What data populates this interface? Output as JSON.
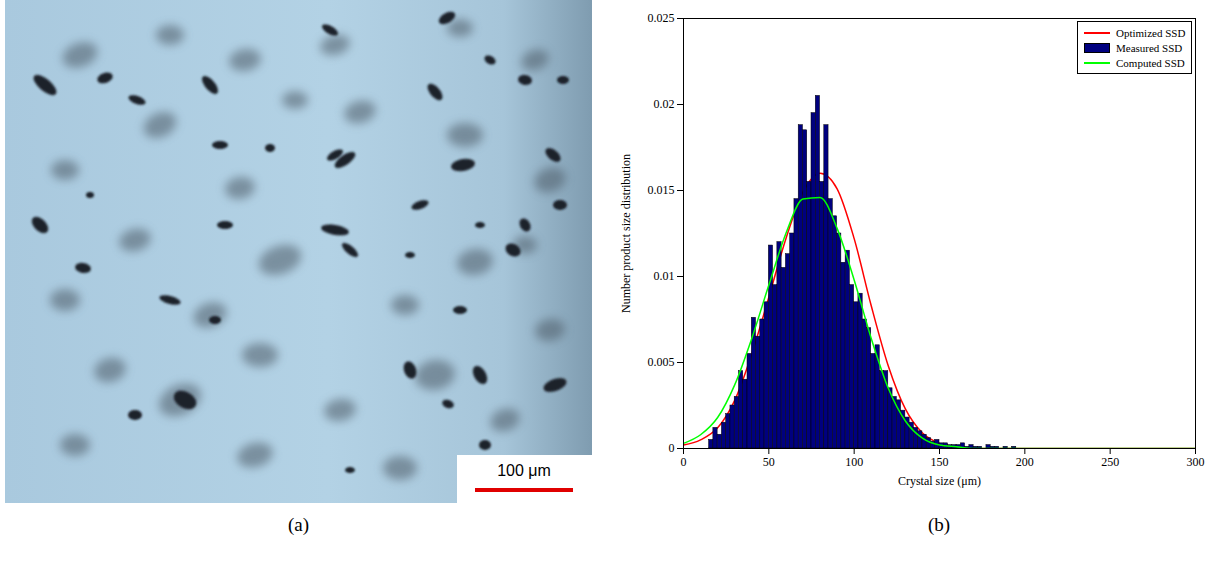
{
  "image": {
    "caption": "(a)",
    "scale_bar": "100 μm"
  },
  "chart_data": {
    "type": "histogram",
    "caption": "(b)",
    "x_label": "Crystal size (μm)",
    "y_label": "Number product size distribution",
    "xlim": [
      0,
      300
    ],
    "xticks": [
      0,
      50,
      100,
      150,
      200,
      250,
      300
    ],
    "ylim": [
      0,
      0.025
    ],
    "yticks": [
      0,
      0.005,
      0.01,
      0.015,
      0.02,
      0.025
    ],
    "grid": false,
    "legend": "northeast",
    "bins": [
      15,
      17.5,
      20,
      22.5,
      25,
      27.5,
      30,
      32.5,
      35,
      37.5,
      40,
      42.5,
      45,
      47.5,
      50,
      52.5,
      55,
      57.5,
      60,
      62.5,
      65,
      67.5,
      70,
      72.5,
      75,
      77.5,
      80,
      82.5,
      85,
      87.5,
      90,
      92.5,
      95,
      97.5,
      100,
      102.5,
      105,
      107.5,
      110,
      112.5,
      115,
      117.5,
      120,
      122.5,
      125,
      127.5,
      130,
      132.5,
      135,
      137.5,
      140,
      142.5,
      145,
      147.5,
      150,
      152.5,
      155,
      157.5,
      160,
      162.5,
      165,
      167.5,
      170,
      172.5,
      175,
      177.5,
      180,
      182.5,
      185,
      187.5,
      190,
      192.5,
      195
    ],
    "series": [
      {
        "name": "Optimized SSD",
        "type": "line",
        "color": "#ff0000",
        "x": [
          0,
          10,
          20,
          30,
          40,
          50,
          60,
          70,
          80,
          90,
          100,
          110,
          120,
          130,
          140,
          150,
          160,
          170,
          180,
          190,
          200,
          210,
          220,
          230,
          240,
          250,
          260,
          270,
          280,
          290,
          300
        ],
        "values": [
          0.0002,
          0.0005,
          0.0012,
          0.0028,
          0.0055,
          0.0088,
          0.0122,
          0.0149,
          0.016,
          0.0151,
          0.0122,
          0.0083,
          0.0048,
          0.0023,
          0.0009,
          0.0003,
          0.0001,
          0,
          0,
          0,
          0,
          0,
          0,
          0,
          0,
          0,
          0,
          0,
          0,
          0,
          0
        ]
      },
      {
        "name": "Measured SSD",
        "type": "bar",
        "color": "#00007f",
        "values": [
          0.0005,
          0.0012,
          0.0008,
          0.0015,
          0.002,
          0.0025,
          0.003,
          0.0045,
          0.004,
          0.0055,
          0.0076,
          0.0065,
          0.0075,
          0.0085,
          0.0118,
          0.0095,
          0.012,
          0.0105,
          0.0113,
          0.0125,
          0.0145,
          0.0188,
          0.0185,
          0.0155,
          0.0195,
          0.0205,
          0.0155,
          0.0188,
          0.0145,
          0.0135,
          0.0125,
          0.0108,
          0.0115,
          0.0095,
          0.0085,
          0.009,
          0.0075,
          0.007,
          0.0055,
          0.006,
          0.0045,
          0.0045,
          0.0035,
          0.003,
          0.0028,
          0.0022,
          0.0018,
          0.0015,
          0.0012,
          0.001,
          0.0008,
          0.0006,
          0.0004,
          0.0005,
          0.0003,
          0.0003,
          0.0002,
          0.0002,
          0.0002,
          0.0003,
          0.0001,
          0.0002,
          0.0001,
          0.0001,
          0,
          0.0002,
          0.0001,
          0.0001,
          0,
          0.0001,
          0,
          0.0001
        ]
      },
      {
        "name": "Computed SSD",
        "type": "line",
        "color": "#00ff00",
        "x": [
          0,
          10,
          20,
          30,
          40,
          50,
          60,
          70,
          80,
          90,
          100,
          110,
          120,
          130,
          140,
          150,
          160,
          170,
          180,
          190,
          200,
          210,
          220,
          230,
          240,
          250,
          260,
          270,
          280,
          290,
          300
        ],
        "values": [
          0.0003,
          0.0008,
          0.0018,
          0.0037,
          0.0064,
          0.0095,
          0.0125,
          0.0145,
          0.0146,
          0.0128,
          0.0098,
          0.0064,
          0.0035,
          0.0016,
          0.0006,
          0.0002,
          0.0001,
          0,
          0,
          0,
          0,
          0,
          0,
          0,
          0,
          0,
          0,
          0,
          0,
          0,
          0
        ]
      }
    ]
  }
}
